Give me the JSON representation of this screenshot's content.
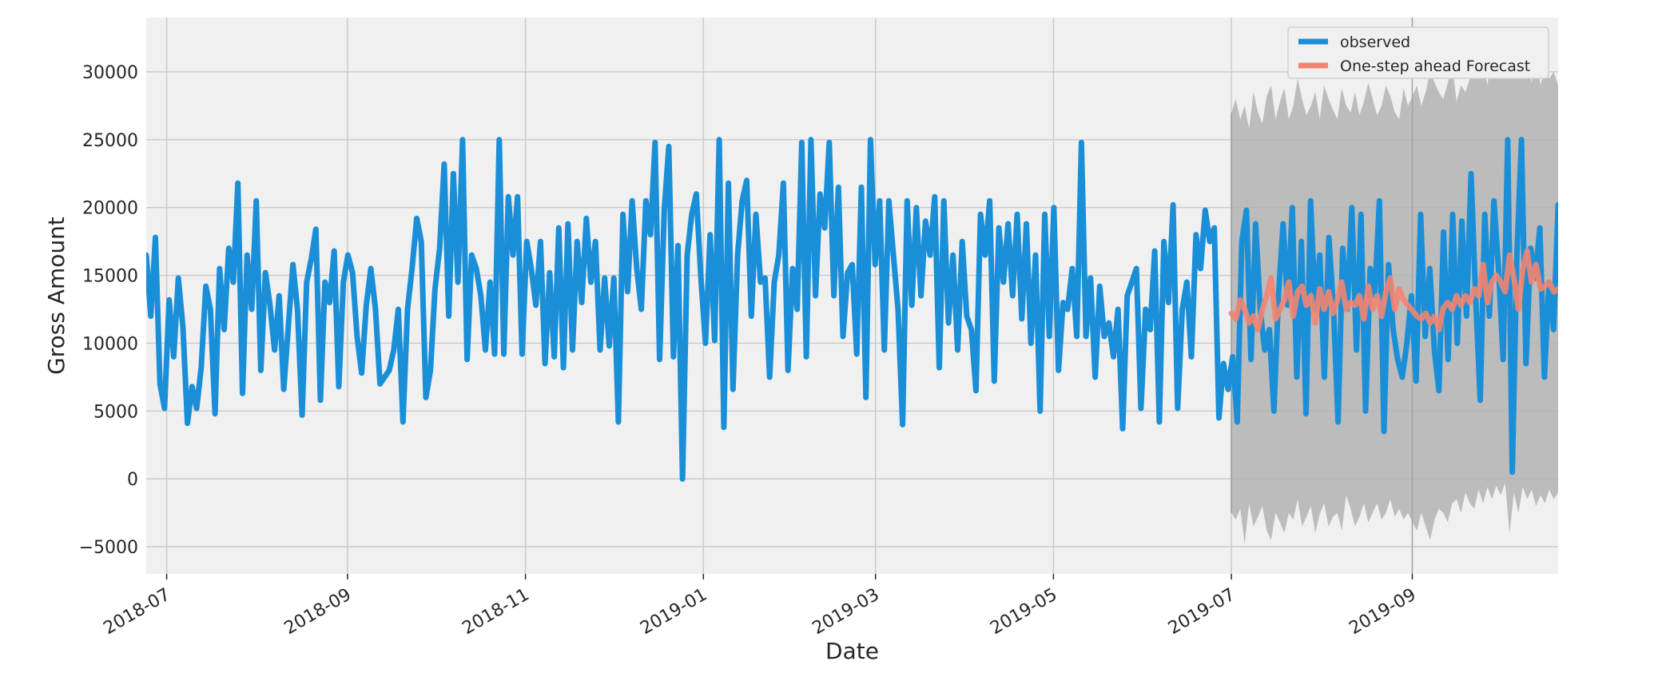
{
  "chart_data": {
    "type": "line",
    "xlabel": "Date",
    "ylabel": "Gross Amount",
    "xlim": [
      "2018-06-24",
      "2019-10-21"
    ],
    "ylim": [
      -7000,
      34000
    ],
    "x_ticks": [
      "2018-07",
      "2018-09",
      "2018-11",
      "2019-01",
      "2019-03",
      "2019-05",
      "2019-07",
      "2019-09"
    ],
    "x_tick_dates": [
      "2018-07-01",
      "2018-09-01",
      "2018-11-01",
      "2019-01-01",
      "2019-03-01",
      "2019-05-01",
      "2019-07-01",
      "2019-09-01"
    ],
    "y_ticks": [
      -5000,
      0,
      5000,
      10000,
      15000,
      20000,
      25000,
      30000
    ],
    "y_tick_labels": [
      "−5000",
      "0",
      "5000",
      "10000",
      "15000",
      "20000",
      "25000",
      "30000"
    ],
    "grid": true,
    "legend_position": "top-right",
    "colors": {
      "observed": "#1a8fd8",
      "forecast": "#f48470",
      "confidence_band": "#b3b3b3",
      "plot_background": "#f0f0f0",
      "grid": "#cbcbcb"
    },
    "series": [
      {
        "name": "observed",
        "x_start": "2018-06-24",
        "x_end": "2019-10-21",
        "values": [
          16500,
          12000,
          17800,
          7000,
          5200,
          13200,
          9000,
          14800,
          11200,
          4100,
          6800,
          5200,
          8200,
          14200,
          12500,
          4800,
          15500,
          11000,
          17000,
          14500,
          21800,
          6300,
          16500,
          12500,
          20500,
          8000,
          15200,
          12800,
          9500,
          13500,
          6600,
          11200,
          15800,
          12500,
          4700,
          14500,
          16200,
          18400,
          5800,
          14500,
          13000,
          16800,
          6800,
          14500,
          16500,
          15200,
          10500,
          7800,
          12800,
          15500,
          12500,
          7000,
          7500,
          8000,
          9500,
          12500,
          4200,
          12500,
          15500,
          19200,
          17500,
          6000,
          8000,
          14000,
          17000,
          23200,
          12000,
          22500,
          14500,
          25000,
          8800,
          16500,
          15500,
          13500,
          9500,
          14500,
          9200,
          25000,
          9200,
          20800,
          16500,
          20800,
          9200,
          17500,
          15500,
          12800,
          17500,
          8500,
          15200,
          9000,
          18500,
          8200,
          18800,
          9500,
          17500,
          13000,
          19200,
          14500,
          17500,
          9500,
          14800,
          9800,
          14800,
          4200,
          19500,
          13800,
          20500,
          15500,
          12500,
          20500,
          18000,
          24800,
          8800,
          19800,
          24500,
          9000,
          17200,
          0,
          16500,
          19500,
          21000,
          14800,
          10000,
          18000,
          10200,
          25000,
          3800,
          21800,
          6600,
          16500,
          20500,
          22000,
          12000,
          19500,
          14500,
          14800,
          7500,
          14500,
          16500,
          21800,
          8000,
          15500,
          12500,
          24800,
          9000,
          25000,
          13500,
          21000,
          18500,
          24800,
          13500,
          21500,
          10500,
          15200,
          15800,
          9200,
          21500,
          6000,
          25000,
          15800,
          20500,
          9500,
          20500,
          16500,
          12500,
          4000,
          20500,
          12800,
          20000,
          13500,
          19000,
          16500,
          20800,
          8200,
          20500,
          11500,
          16500,
          9500,
          17500,
          12000,
          11000,
          6500,
          19500,
          16500,
          20500,
          7200,
          18500,
          14500,
          18800,
          13500,
          19500,
          11800,
          18800,
          10000,
          16500,
          5000,
          19500,
          10500,
          20000,
          8000,
          13000,
          12500,
          15500,
          10500,
          24800,
          10500,
          14800,
          7500,
          14200,
          10500,
          11500,
          9000,
          12500,
          3700,
          13500,
          14500,
          15500,
          5200,
          12500,
          11000,
          16800,
          4200,
          17500,
          13000,
          20200,
          5200,
          12500,
          14500,
          9000,
          18000,
          15500,
          19800,
          17500,
          18500,
          4500,
          8500,
          6600,
          9000,
          4200,
          17500,
          19800,
          8800,
          18800,
          12500,
          9500,
          11000,
          5000,
          13500,
          18800,
          12800,
          20000,
          7500,
          17500,
          4800,
          20500,
          12500,
          16500,
          7500,
          17800,
          12500,
          4200,
          17000,
          12500,
          20000,
          9500,
          19500,
          5000,
          15500,
          13500,
          20500,
          3500,
          15800,
          11000,
          8800,
          7500,
          10000,
          13500,
          7200,
          19500,
          10500,
          15500,
          9500,
          6500,
          18200,
          8800,
          19500,
          10000,
          19000,
          12000,
          22500,
          13500,
          5800,
          19500,
          12000,
          20500,
          15500,
          8800,
          25000,
          500,
          16500,
          25000,
          8500,
          17000,
          14800,
          18500,
          7500,
          14500,
          11000,
          20200
        ]
      },
      {
        "name": "One-step ahead Forecast",
        "x_start": "2019-07-01",
        "x_end": "2019-10-21",
        "values": [
          12200,
          11800,
          13200,
          12500,
          11500,
          12000,
          11000,
          12500,
          13500,
          14800,
          11800,
          12500,
          13200,
          14500,
          12000,
          13800,
          14200,
          12800,
          13500,
          11500,
          14000,
          12500,
          13800,
          12200,
          13200,
          14500,
          12500,
          13000,
          12800,
          13500,
          11800,
          14200,
          12500,
          13500,
          12000,
          13800,
          14800,
          12500,
          14000,
          13200,
          12800,
          12400,
          12000,
          11800,
          12200,
          11500,
          12000,
          11000,
          12600,
          13000,
          12500,
          13500,
          12800,
          13500,
          13000,
          14000,
          13500,
          15800,
          13000,
          14500,
          15000,
          14500,
          13800,
          16500,
          14800,
          12500,
          15500,
          16800,
          14500,
          15800,
          14000,
          14200,
          14500,
          13800,
          14000
        ]
      },
      {
        "name": "confidence_band",
        "x_start": "2019-07-01",
        "x_end": "2019-10-21",
        "upper": [
          27000,
          28000,
          26500,
          27500,
          25800,
          28500,
          27000,
          26200,
          28200,
          29000,
          26500,
          27800,
          28800,
          26500,
          27500,
          29500,
          28000,
          26800,
          27500,
          28500,
          26500,
          29000,
          28000,
          27200,
          26500,
          28800,
          27500,
          27000,
          28500,
          26800,
          27800,
          29200,
          28000,
          26800,
          27500,
          29000,
          28200,
          27000,
          26500,
          28800,
          27500,
          28200,
          29000,
          27500,
          28500,
          30000,
          29200,
          28500,
          28000,
          29200,
          30500,
          27800,
          29000,
          28500,
          29500,
          31000,
          29800,
          30500,
          29000,
          31500,
          29500,
          30000,
          30800,
          29500,
          31000,
          29800,
          30200,
          30500,
          29200,
          31500,
          29000,
          30200,
          29500,
          30000,
          29000
        ],
        "lower": [
          -2500,
          -3000,
          -2200,
          -4800,
          -1800,
          -3500,
          -2800,
          -2000,
          -3800,
          -4500,
          -2500,
          -3200,
          -4000,
          -2500,
          -3000,
          -1500,
          -3500,
          -2800,
          -2000,
          -4000,
          -2600,
          -1800,
          -3500,
          -2800,
          -2500,
          -3800,
          -1200,
          -2200,
          -3500,
          -2800,
          -1800,
          -3200,
          -2500,
          -1800,
          -3000,
          -2500,
          -1500,
          -2800,
          -2200,
          -3000,
          -2500,
          -3200,
          -3800,
          -2500,
          -3500,
          -4500,
          -3000,
          -2200,
          -2500,
          -3200,
          -1800,
          -1500,
          -2500,
          -1000,
          -1800,
          -2200,
          -800,
          -1800,
          -600,
          -1500,
          -500,
          -1200,
          -300,
          -4000,
          -1000,
          -2500,
          -600,
          -1500,
          -800,
          -2000,
          -1200,
          -1800,
          -800,
          -1500,
          -1000
        ]
      }
    ]
  }
}
